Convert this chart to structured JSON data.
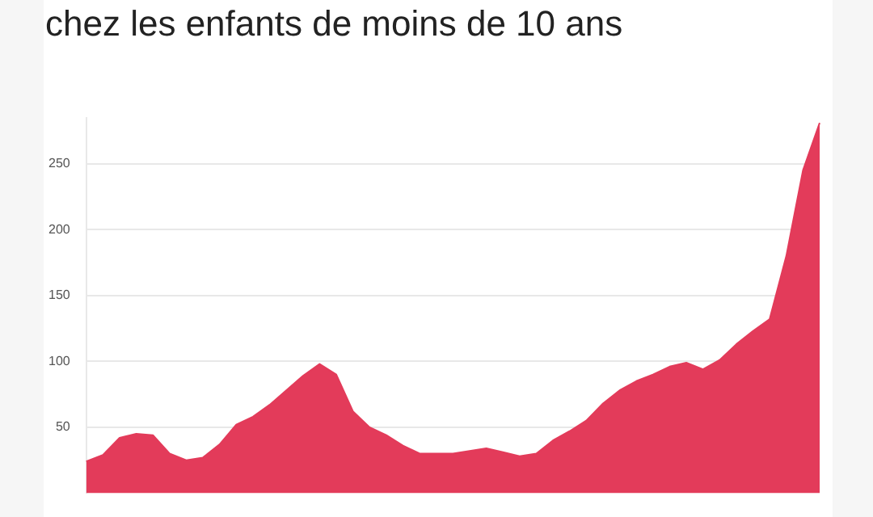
{
  "chart_data": {
    "type": "area",
    "title": "chez les enfants de moins de 10 ans",
    "categories": [
      null,
      null,
      null,
      null,
      null,
      null,
      null,
      null,
      null,
      null,
      null,
      null,
      null,
      null,
      null,
      null,
      null,
      null,
      null,
      null,
      null,
      null,
      null,
      null,
      null,
      null,
      null,
      null,
      null,
      null,
      null,
      null,
      null,
      null,
      null,
      null,
      null,
      null,
      null,
      null,
      null,
      null,
      null,
      null,
      null
    ],
    "series": [
      {
        "color": "#e33b5a",
        "values": [
          24,
          29,
          42,
          45,
          44,
          30,
          25,
          27,
          37,
          52,
          58,
          67,
          78,
          89,
          98,
          90,
          62,
          50,
          44,
          36,
          30,
          30,
          30,
          32,
          34,
          31,
          28,
          30,
          40,
          47,
          55,
          68,
          78,
          85,
          90,
          96,
          99,
          94,
          101,
          113,
          123,
          132,
          180,
          245,
          281
        ]
      }
    ],
    "ylim": [
      0,
      285
    ],
    "yticks": [
      50,
      100,
      150,
      200,
      250
    ],
    "grid": "y",
    "tick_labels": "y",
    "legend": false
  }
}
